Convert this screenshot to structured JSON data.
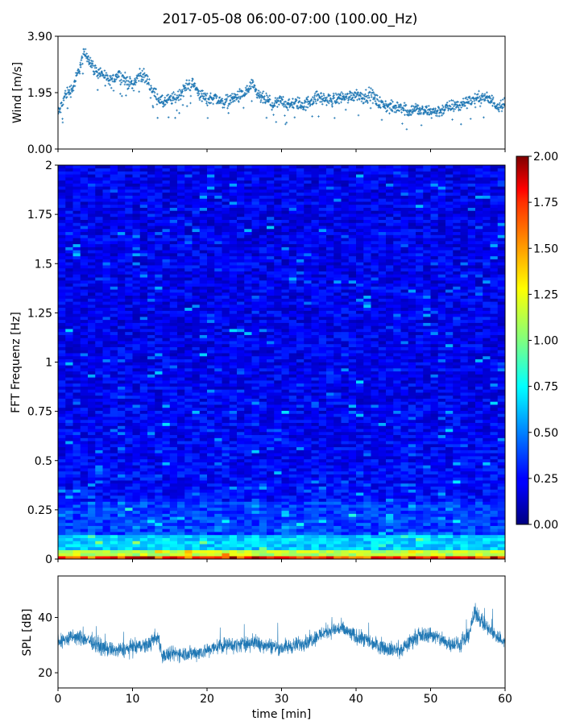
{
  "figure": {
    "title": "2017-05-08 06:00-07:00 (100.00_Hz)"
  },
  "chart_data": [
    {
      "type": "scatter",
      "panel": "wind",
      "ylabel": "Wind [m/s]",
      "xlim": [
        0,
        60
      ],
      "ylim": [
        0,
        3.9
      ],
      "yticks": [
        "0.00",
        "1.95",
        "3.90"
      ],
      "marker": "+",
      "color": "#1f77b4",
      "trend": {
        "x": [
          0,
          0.5,
          1,
          2,
          3,
          3.5,
          4,
          5,
          6,
          7,
          8,
          9,
          10,
          11,
          12,
          13,
          14,
          15,
          16,
          17,
          18,
          19,
          20,
          21,
          22,
          23,
          24,
          25,
          26,
          27,
          28,
          29,
          30,
          31,
          32,
          33,
          34,
          35,
          36,
          37,
          38,
          39,
          40,
          41,
          42,
          43,
          44,
          45,
          46,
          47,
          48,
          49,
          50,
          51,
          52,
          53,
          54,
          55,
          56,
          57,
          58,
          59,
          60
        ],
        "y": [
          1.2,
          1.5,
          1.9,
          2.1,
          2.9,
          3.3,
          3.2,
          2.7,
          2.6,
          2.3,
          2.6,
          2.4,
          2.2,
          2.6,
          2.4,
          1.9,
          1.6,
          1.7,
          1.8,
          2.1,
          2.3,
          1.9,
          1.7,
          1.8,
          1.6,
          1.7,
          1.8,
          1.9,
          2.2,
          1.8,
          1.7,
          1.5,
          1.7,
          1.5,
          1.6,
          1.5,
          1.7,
          1.8,
          1.7,
          1.7,
          1.8,
          1.8,
          1.9,
          1.8,
          1.9,
          1.6,
          1.5,
          1.4,
          1.5,
          1.3,
          1.4,
          1.3,
          1.3,
          1.3,
          1.4,
          1.5,
          1.5,
          1.7,
          1.7,
          1.8,
          1.7,
          1.5,
          1.6
        ]
      }
    },
    {
      "type": "heatmap",
      "panel": "spectrogram",
      "ylabel": "FFT Frequenz [Hz]",
      "xlim": [
        0,
        60
      ],
      "ylim": [
        0,
        2
      ],
      "yticks": [
        "0",
        "0.25",
        "0.5",
        "0.75",
        "1",
        "1.25",
        "1.5",
        "1.75",
        "2"
      ],
      "colormap": "jet",
      "colorbar": {
        "range": [
          0,
          2
        ],
        "ticks": [
          "0.00",
          "0.25",
          "0.50",
          "0.75",
          "1.00",
          "1.25",
          "1.50",
          "1.75",
          "2.00"
        ]
      }
    },
    {
      "type": "line",
      "panel": "spl",
      "ylabel": "SPL [dB]",
      "xlabel": "time [min]",
      "xlim": [
        0,
        60
      ],
      "ylim": [
        14.5,
        55
      ],
      "yticks": [
        "20",
        "40"
      ],
      "xticks": [
        "0",
        "10",
        "20",
        "30",
        "40",
        "50",
        "60"
      ],
      "color": "#1f77b4",
      "trend": {
        "x": [
          0,
          2,
          4,
          6,
          8,
          10,
          12,
          13.5,
          14,
          16,
          18,
          20,
          22,
          24,
          26,
          28,
          30,
          32,
          34,
          36,
          38,
          40,
          42,
          44,
          46,
          48,
          50,
          52,
          54,
          55,
          56,
          57,
          58,
          60
        ],
        "y": [
          31,
          33,
          32,
          29,
          28,
          29,
          30,
          33,
          26,
          27,
          27,
          28,
          30,
          30,
          31,
          30,
          29,
          30,
          32,
          35,
          36,
          33,
          31,
          29,
          28,
          33,
          34,
          31,
          30,
          33,
          42,
          38,
          35,
          31
        ]
      }
    }
  ]
}
